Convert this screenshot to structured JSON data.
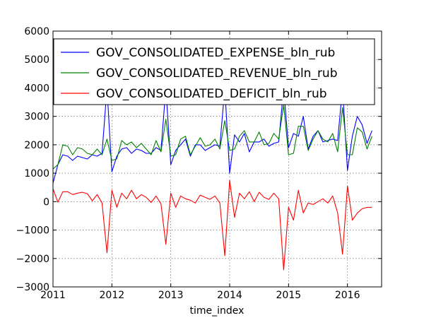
{
  "chart_data": {
    "type": "line",
    "title": "",
    "xlabel": "time_index",
    "ylabel": "",
    "xlim": [
      2011.0,
      2016.58
    ],
    "ylim": [
      -3000,
      6000
    ],
    "grid": true,
    "legend_position": "top",
    "x_ticks": [
      2011,
      2012,
      2013,
      2014,
      2015,
      2016
    ],
    "x_tick_labels": [
      "2011",
      "2012",
      "2013",
      "2014",
      "2015",
      "2016"
    ],
    "y_ticks": [
      -3000,
      -2000,
      -1000,
      0,
      1000,
      2000,
      3000,
      4000,
      5000,
      6000
    ],
    "y_tick_labels": [
      "−3000",
      "−2000",
      "−1000",
      "0",
      "1000",
      "2000",
      "3000",
      "4000",
      "5000",
      "6000"
    ],
    "x": [
      2011.0,
      2011.083,
      2011.167,
      2011.25,
      2011.333,
      2011.417,
      2011.5,
      2011.583,
      2011.667,
      2011.75,
      2011.833,
      2011.917,
      2012.0,
      2012.083,
      2012.167,
      2012.25,
      2012.333,
      2012.417,
      2012.5,
      2012.583,
      2012.667,
      2012.75,
      2012.833,
      2012.917,
      2013.0,
      2013.083,
      2013.167,
      2013.25,
      2013.333,
      2013.417,
      2013.5,
      2013.583,
      2013.667,
      2013.75,
      2013.833,
      2013.917,
      2014.0,
      2014.083,
      2014.167,
      2014.25,
      2014.333,
      2014.417,
      2014.5,
      2014.583,
      2014.667,
      2014.75,
      2014.833,
      2014.917,
      2015.0,
      2015.083,
      2015.167,
      2015.25,
      2015.333,
      2015.417,
      2015.5,
      2015.583,
      2015.667,
      2015.75,
      2015.833,
      2015.917,
      2016.0,
      2016.083,
      2016.167,
      2016.25,
      2016.333,
      2016.417
    ],
    "series": [
      {
        "name": "GOV_CONSOLIDATED_EXPENSE_bln_rub",
        "color": "#0000ff",
        "values": [
          650,
          1300,
          1650,
          1600,
          1450,
          1600,
          1550,
          1500,
          1650,
          1600,
          1700,
          4000,
          1050,
          1600,
          1850,
          1900,
          1700,
          1850,
          1800,
          1700,
          1700,
          1900,
          1800,
          4000,
          1300,
          1800,
          2000,
          2200,
          1600,
          2000,
          2000,
          1800,
          1900,
          2000,
          1950,
          4000,
          1000,
          2350,
          2100,
          2400,
          1750,
          2100,
          2100,
          2200,
          1950,
          2050,
          2100,
          4000,
          1900,
          2400,
          2300,
          3000,
          1850,
          2300,
          2500,
          2100,
          2150,
          2200,
          2150,
          4000,
          1100,
          2300,
          3000,
          2700,
          2050,
          2500
        ]
      },
      {
        "name": "GOV_CONSOLIDATED_REVENUE_bln_rub",
        "color": "#008000",
        "values": [
          1150,
          1300,
          2000,
          1950,
          1650,
          1900,
          1850,
          1700,
          1650,
          1850,
          1650,
          2200,
          1450,
          1500,
          2150,
          2000,
          2100,
          1900,
          2050,
          1850,
          1650,
          2150,
          1750,
          2900,
          1600,
          1650,
          2200,
          2300,
          1650,
          1950,
          2250,
          1950,
          2000,
          2200,
          1850,
          2850,
          1800,
          1850,
          2300,
          2500,
          2100,
          2100,
          2450,
          2000,
          2050,
          2400,
          2200,
          3400,
          1650,
          1700,
          2650,
          2650,
          1800,
          2200,
          2500,
          2200,
          2100,
          2400,
          1750,
          3300,
          1650,
          1650,
          2600,
          2450,
          1850,
          2300
        ]
      },
      {
        "name": "GOV_CONSOLIDATED_DEFICIT_bln_rub",
        "color": "#ff0000",
        "values": [
          450,
          -20,
          350,
          350,
          250,
          300,
          330,
          280,
          30,
          250,
          -50,
          -1800,
          400,
          -200,
          300,
          100,
          400,
          100,
          250,
          150,
          -30,
          200,
          -80,
          -1500,
          300,
          -200,
          200,
          100,
          50,
          -50,
          230,
          150,
          80,
          200,
          -50,
          -1900,
          750,
          -550,
          300,
          100,
          350,
          0,
          330,
          150,
          80,
          300,
          100,
          -2400,
          -200,
          -650,
          400,
          -400,
          -50,
          -100,
          0,
          100,
          -50,
          200,
          -400,
          -1850,
          550,
          -650,
          -400,
          -250,
          -200,
          -200
        ]
      }
    ]
  }
}
